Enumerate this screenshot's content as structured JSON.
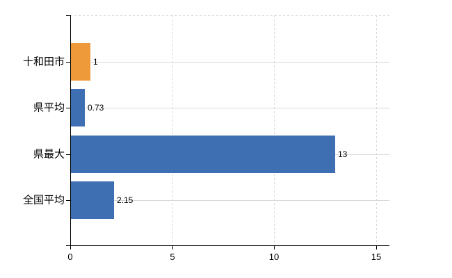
{
  "chart_data": {
    "type": "bar",
    "orientation": "horizontal",
    "categories": [
      "十和田市",
      "県平均",
      "県最大",
      "全国平均"
    ],
    "values": [
      1,
      0.73,
      13,
      2.15
    ],
    "value_labels": [
      "1",
      "0.73",
      "13",
      "2.15"
    ],
    "bar_colors": [
      "#ee9a3b",
      "#3d6fb2",
      "#3d6fb2",
      "#3d6fb2"
    ],
    "xlim": [
      0,
      15
    ],
    "xticks": [
      0,
      5,
      10,
      15
    ],
    "xtick_labels": [
      "0",
      "5",
      "10",
      "15"
    ],
    "grid": true,
    "legend_position": "none"
  },
  "colors": {
    "highlight_bar": "#ee9a3b",
    "default_bar": "#3d6fb2",
    "axis": "#000000",
    "vertical_gridline": "#d9d9d9",
    "horizontal_gridline": "#d4dcd4",
    "text": "#000000",
    "background": "#ffffff"
  }
}
